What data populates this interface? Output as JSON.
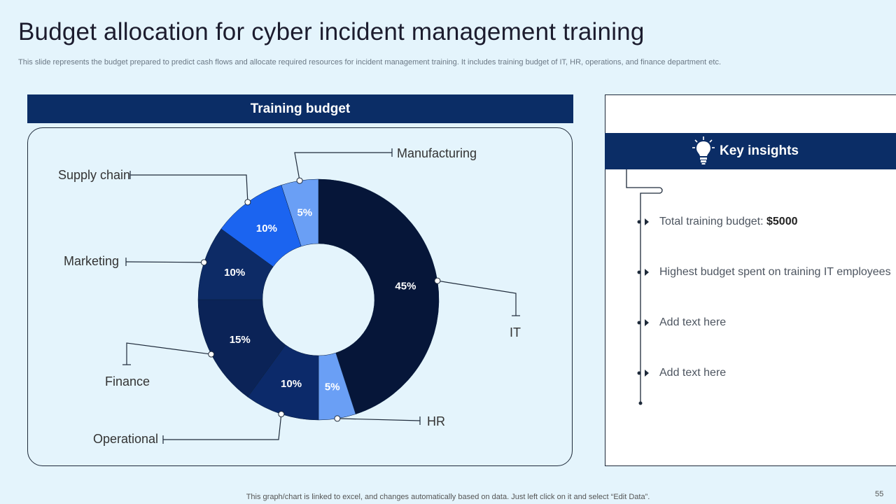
{
  "slide": {
    "title": "Budget allocation for cyber incident management training",
    "subtitle": "This slide represents the budget prepared to predict cash flows and allocate required resources for incident management training. It includes training budget of IT,  HR, operations,  and finance department etc.",
    "footer": "This graph/chart is linked to excel,  and changes automatically based on data. Just left click on it and select “Edit Data”.",
    "page_number": "55"
  },
  "chart_header": "Training budget",
  "chart_data": {
    "type": "pie",
    "donut": true,
    "title": "Training budget",
    "categories": [
      "IT",
      "HR",
      "Operational",
      "Finance",
      "Marketing",
      "Supply chain",
      "Manufacturing"
    ],
    "values": [
      45,
      5,
      10,
      15,
      10,
      10,
      5
    ],
    "value_labels": [
      "45%",
      "5%",
      "10%",
      "15%",
      "10%",
      "10%",
      "5%"
    ],
    "colors": [
      "#061639",
      "#6a9ff5",
      "#0c2a6a",
      "#0b2357",
      "#0d2b66",
      "#1b64f0",
      "#6a9ff5"
    ]
  },
  "insights": {
    "header": "Key insights",
    "icon": "lightbulb-icon",
    "items": [
      {
        "text": "Total training budget: ",
        "bold": "$5000"
      },
      {
        "text": "Highest budget spent on training IT  employees",
        "bold": ""
      },
      {
        "text": "Add text here",
        "bold": ""
      },
      {
        "text": "Add text here",
        "bold": ""
      }
    ]
  }
}
